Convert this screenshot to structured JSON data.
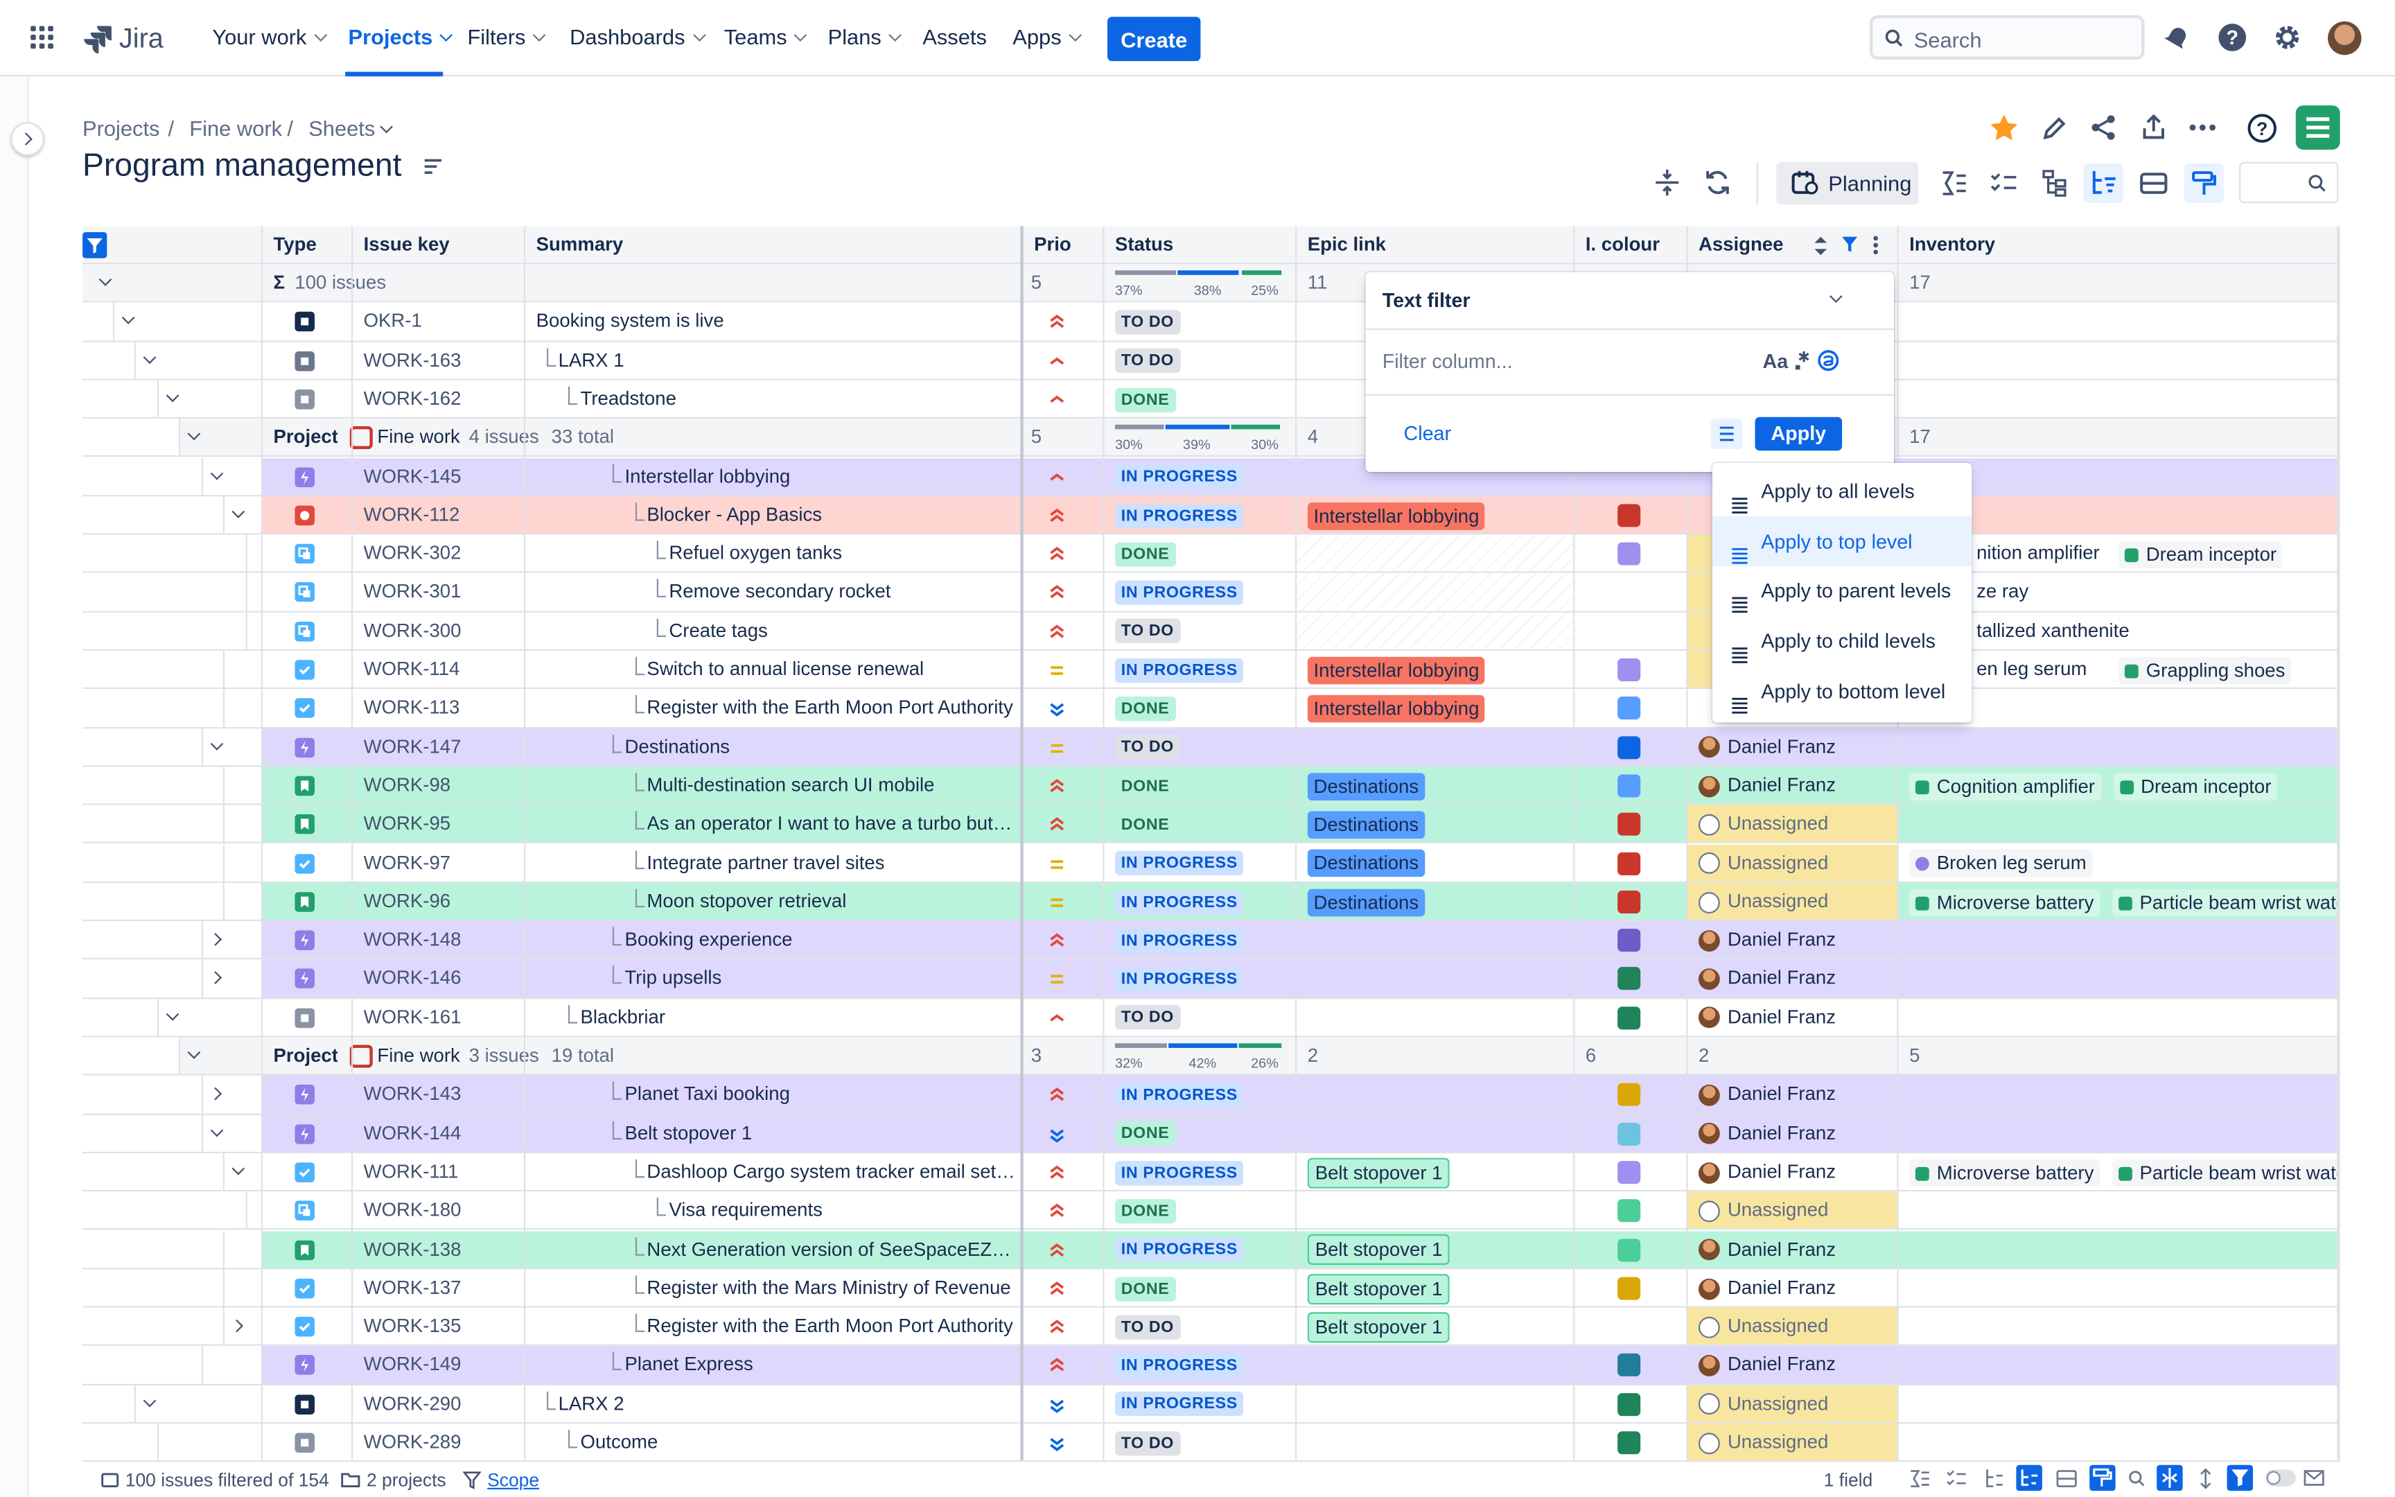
{
  "app": {
    "name": "Jira"
  },
  "nav": {
    "items": [
      {
        "label": "Your work",
        "dropdown": true
      },
      {
        "label": "Projects",
        "dropdown": true,
        "active": true
      },
      {
        "label": "Filters",
        "dropdown": true
      },
      {
        "label": "Dashboards",
        "dropdown": true
      },
      {
        "label": "Teams",
        "dropdown": true
      },
      {
        "label": "Plans",
        "dropdown": true
      },
      {
        "label": "Assets",
        "dropdown": false
      },
      {
        "label": "Apps",
        "dropdown": true
      }
    ],
    "create_label": "Create",
    "search_placeholder": "Search"
  },
  "breadcrumb": {
    "items": [
      "Projects",
      "Fine work",
      "Sheets"
    ],
    "separator": "/"
  },
  "page": {
    "title": "Program management"
  },
  "toolbar": {
    "planning_label": "Planning"
  },
  "columns": [
    "Type",
    "Issue key",
    "Summary",
    "Prio",
    "Status",
    "Epic link",
    "I. colour",
    "Assignee",
    "Inventory"
  ],
  "summary_row": {
    "sigma": "Σ",
    "label": "100 issues",
    "prio": "5",
    "status_pcts": [
      "37%",
      "38%",
      "25%"
    ],
    "status_fracs": [
      0.37,
      0.38,
      0.25
    ],
    "epic": "11",
    "inventory": "17"
  },
  "project_groups": [
    {
      "label": "Project",
      "name": "Fine work",
      "issues": "4 issues",
      "total": "33 total",
      "prio": "5",
      "status_pcts": [
        "30%",
        "39%",
        "30%"
      ],
      "status_fracs": [
        0.3,
        0.39,
        0.3
      ],
      "epic": "4",
      "inventory": "17"
    },
    {
      "label": "Project",
      "name": "Fine work",
      "issues": "3 issues",
      "total": "19 total",
      "prio": "3",
      "status_pcts": [
        "32%",
        "42%",
        "26%"
      ],
      "status_fracs": [
        0.32,
        0.42,
        0.26
      ],
      "epic": "2",
      "colour": "6",
      "assignee": "2",
      "inventory": "5"
    }
  ],
  "rows": [
    {
      "key": "OKR-1",
      "summary": "Booking system is live",
      "status": "TO DO",
      "prio": "high"
    },
    {
      "key": "WORK-163",
      "summary": "LARX 1",
      "status": "TO DO",
      "prio": "medium-high"
    },
    {
      "key": "WORK-162",
      "summary": "Treadstone",
      "status": "DONE",
      "prio": "medium-high"
    },
    {
      "key": "WORK-145",
      "summary": "Interstellar lobbying",
      "status": "IN PROGRESS",
      "prio": "medium-high"
    },
    {
      "key": "WORK-112",
      "summary": "Blocker - App Basics",
      "status": "IN PROGRESS",
      "epic": "Interstellar lobbying",
      "prio": "high"
    },
    {
      "key": "WORK-302",
      "summary": "Refuel oxygen tanks",
      "status": "DONE",
      "assignee_partial": "nition amplifier",
      "inventory": [
        "Dream inceptor"
      ],
      "prio": "high"
    },
    {
      "key": "WORK-301",
      "summary": "Remove secondary rocket",
      "status": "IN PROGRESS",
      "assignee_partial": "ze ray",
      "prio": "high"
    },
    {
      "key": "WORK-300",
      "summary": "Create tags",
      "status": "TO DO",
      "assignee_partial": "tallized xanthenite",
      "prio": "high"
    },
    {
      "key": "WORK-114",
      "summary": "Switch to annual license renewal",
      "status": "IN PROGRESS",
      "epic": "Interstellar lobbying",
      "assignee_partial": "en leg serum",
      "inventory": [
        "Grappling shoes"
      ],
      "prio": "medium"
    },
    {
      "key": "WORK-113",
      "summary": "Register with the Earth Moon Port Authority",
      "status": "DONE",
      "epic": "Interstellar lobbying",
      "prio": "lowest"
    },
    {
      "key": "WORK-147",
      "summary": "Destinations",
      "status": "TO DO",
      "assignee": "Daniel Franz",
      "prio": "medium"
    },
    {
      "key": "WORK-98",
      "summary": "Multi-destination search UI mobile",
      "status": "DONE",
      "epic": "Destinations",
      "assignee": "Daniel Franz",
      "inventory": [
        "Cognition amplifier",
        "Dream inceptor"
      ],
      "prio": "high"
    },
    {
      "key": "WORK-95",
      "summary": "As an operator I want to have a turbo button",
      "status": "DONE",
      "epic": "Destinations",
      "assignee": "Unassigned",
      "prio": "high"
    },
    {
      "key": "WORK-97",
      "summary": "Integrate partner travel sites",
      "status": "IN PROGRESS",
      "epic": "Destinations",
      "assignee": "Unassigned",
      "inventory": [
        "Broken leg serum"
      ],
      "prio": "medium"
    },
    {
      "key": "WORK-96",
      "summary": "Moon stopover retrieval",
      "status": "IN PROGRESS",
      "epic": "Destinations",
      "assignee": "Unassigned",
      "inventory": [
        "Microverse battery",
        "Particle beam wrist watc"
      ],
      "prio": "medium"
    },
    {
      "key": "WORK-148",
      "summary": "Booking experience",
      "status": "IN PROGRESS",
      "assignee": "Daniel Franz",
      "prio": "high"
    },
    {
      "key": "WORK-146",
      "summary": "Trip upsells",
      "status": "IN PROGRESS",
      "assignee": "Daniel Franz",
      "prio": "medium"
    },
    {
      "key": "WORK-161",
      "summary": "Blackbriar",
      "status": "TO DO",
      "assignee": "Daniel Franz",
      "prio": "medium-high"
    },
    {
      "key": "WORK-143",
      "summary": "Planet Taxi booking",
      "status": "IN PROGRESS",
      "assignee": "Daniel Franz",
      "prio": "high"
    },
    {
      "key": "WORK-144",
      "summary": "Belt stopover 1",
      "status": "DONE",
      "assignee": "Daniel Franz",
      "prio": "lowest"
    },
    {
      "key": "WORK-111",
      "summary": "Dashloop Cargo system tracker email setup",
      "status": "IN PROGRESS",
      "epic": "Belt stopover 1",
      "assignee": "Daniel Franz",
      "inventory": [
        "Microverse battery",
        "Particle beam wrist watc"
      ],
      "prio": "high"
    },
    {
      "key": "WORK-180",
      "summary": "Visa requirements",
      "status": "DONE",
      "assignee": "Unassigned",
      "prio": "high"
    },
    {
      "key": "WORK-138",
      "summary": "Next Generation version of SeeSpaceEZ tra...",
      "status": "IN PROGRESS",
      "epic": "Belt stopover 1",
      "assignee": "Daniel Franz",
      "prio": "high"
    },
    {
      "key": "WORK-137",
      "summary": "Register with the Mars Ministry of Revenue",
      "status": "DONE",
      "epic": "Belt stopover 1",
      "assignee": "Daniel Franz",
      "prio": "high"
    },
    {
      "key": "WORK-135",
      "summary": "Register with the Earth Moon Port Authority",
      "status": "TO DO",
      "epic": "Belt stopover 1",
      "assignee": "Unassigned",
      "prio": "high"
    },
    {
      "key": "WORK-149",
      "summary": "Planet Express",
      "status": "IN PROGRESS",
      "assignee": "Daniel Franz",
      "prio": "high"
    },
    {
      "key": "WORK-290",
      "summary": "LARX 2",
      "status": "IN PROGRESS",
      "assignee": "Unassigned",
      "prio": "lowest"
    },
    {
      "key": "WORK-289",
      "summary": "Outcome",
      "status": "TO DO",
      "assignee": "Unassigned",
      "prio": "lowest"
    }
  ],
  "text_filter": {
    "title": "Text filter",
    "placeholder": "Filter column...",
    "case_icon": "Aa",
    "clear_label": "Clear",
    "apply_label": "Apply"
  },
  "level_menu": {
    "items": [
      "Apply to all levels",
      "Apply to top level",
      "Apply to parent levels",
      "Apply to child levels",
      "Apply to bottom level"
    ],
    "selected": "Apply to top level"
  },
  "footer": {
    "filtered": "100 issues filtered of 154",
    "projects": "2 projects",
    "scope": "Scope",
    "field": "1 field"
  },
  "colors": {
    "accent": "#0c66e4",
    "epic_row": "#dfd8fd",
    "story_row": "#baf3db",
    "blocker_row": "#ffd5d2",
    "unassigned": "#f8e6a0"
  }
}
